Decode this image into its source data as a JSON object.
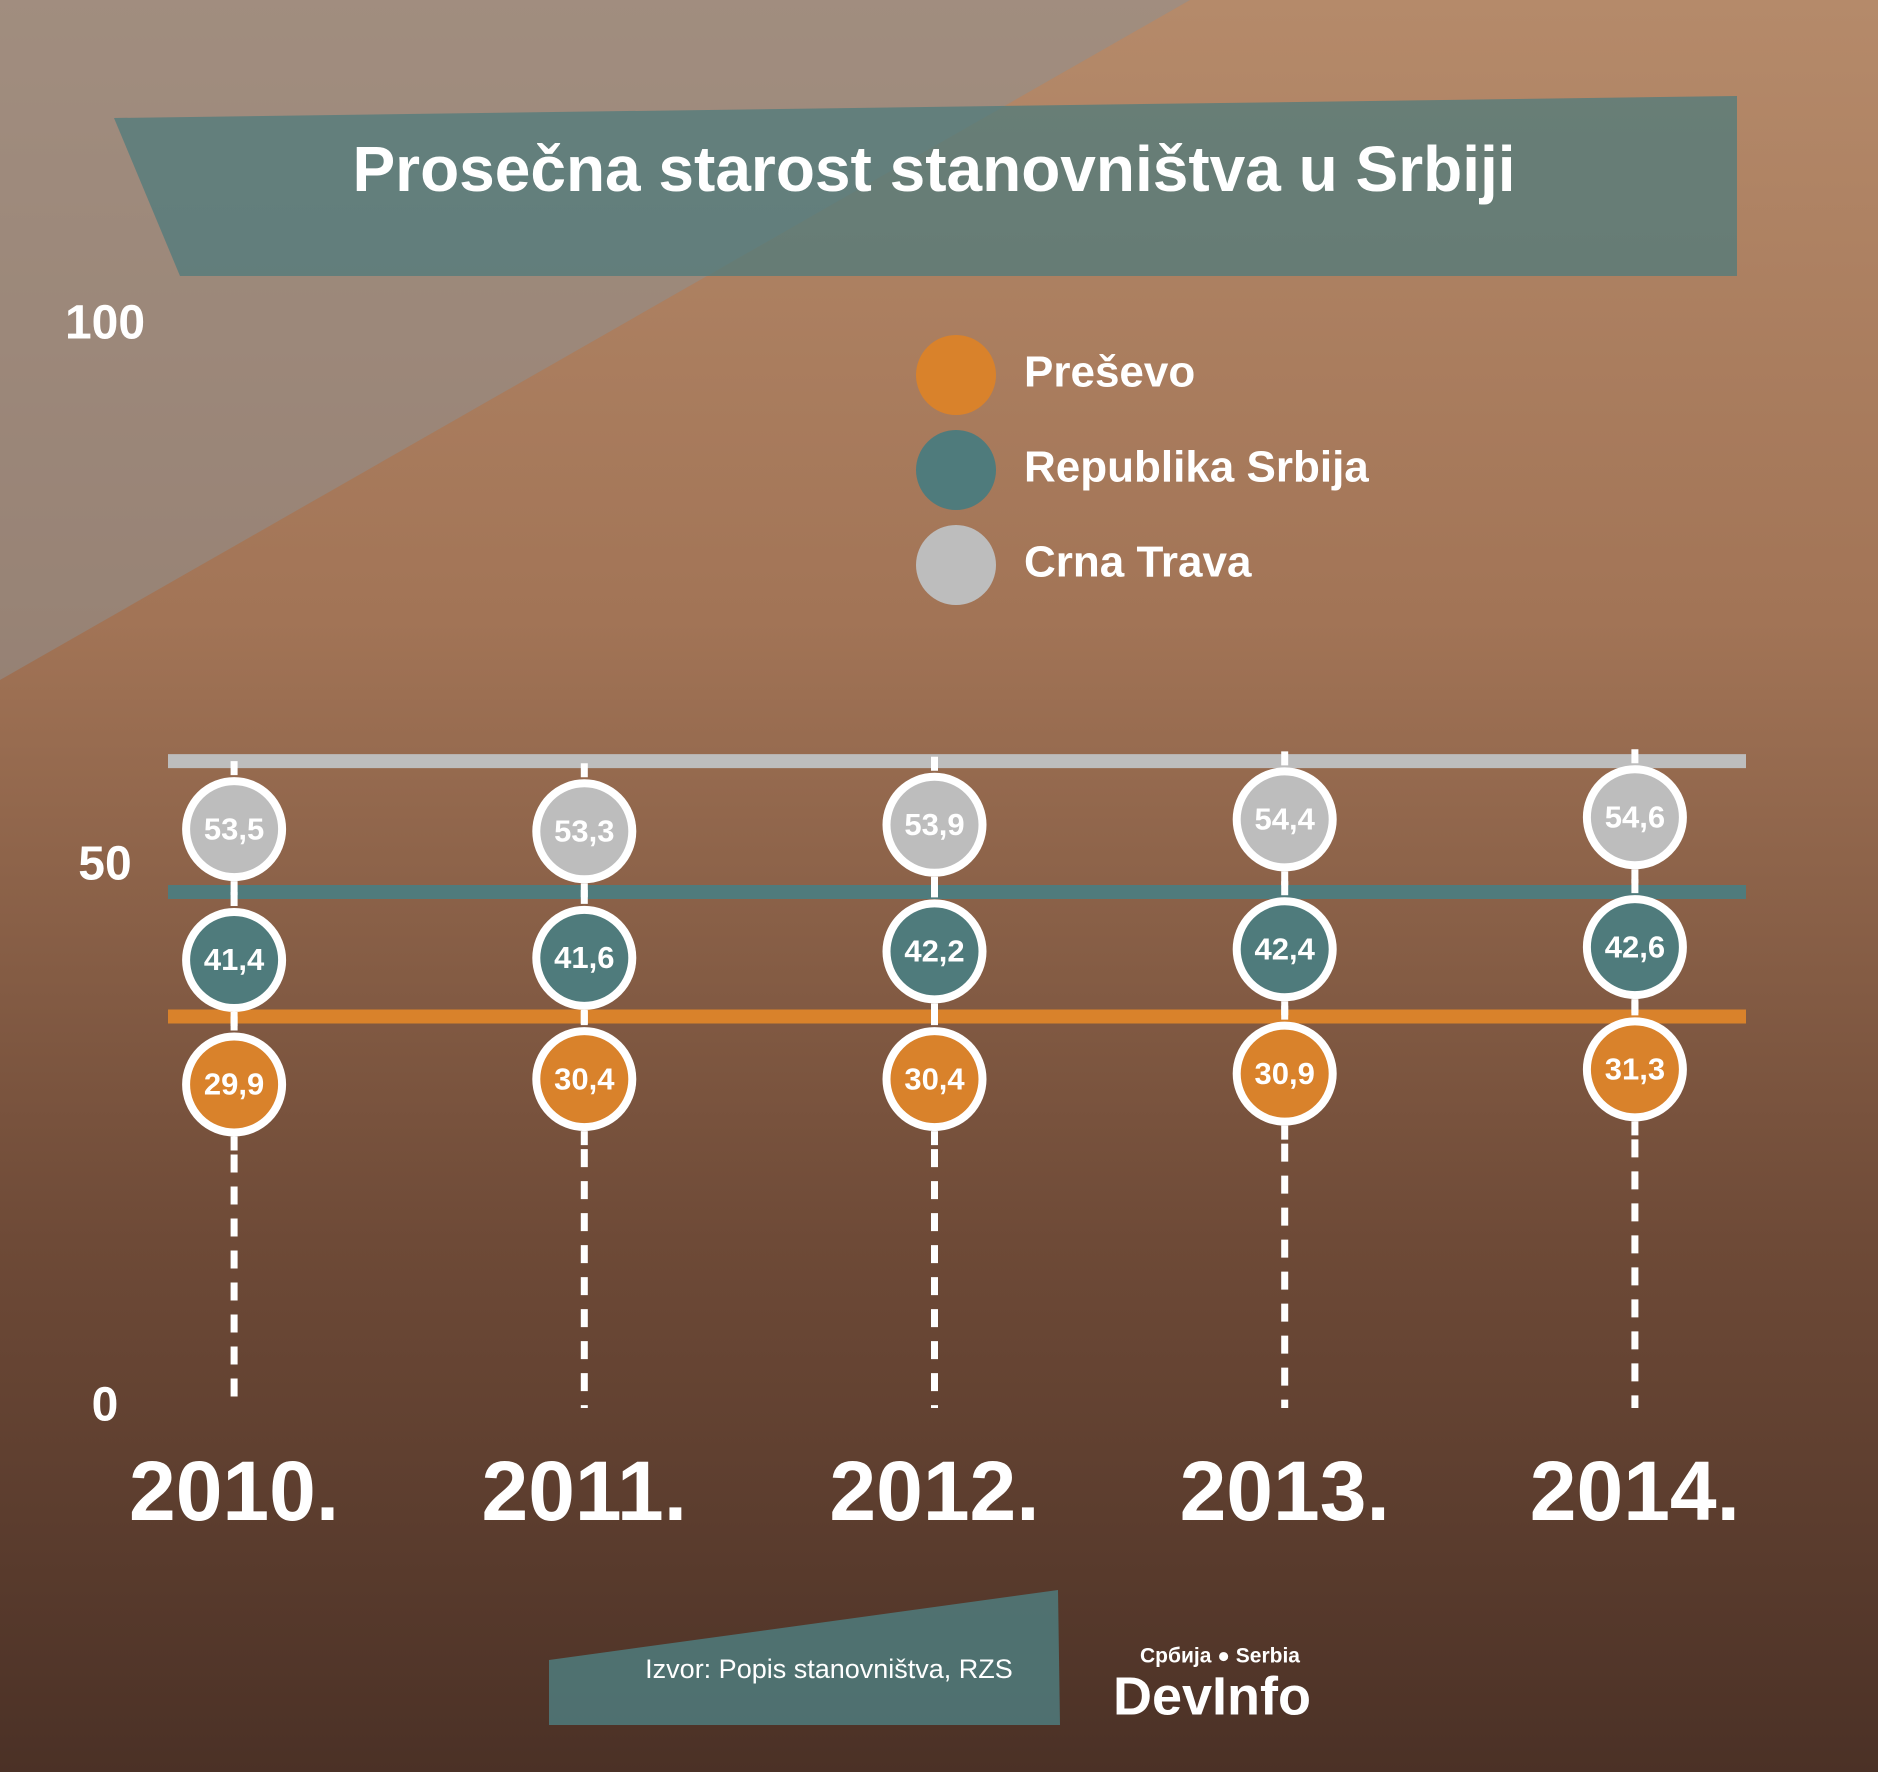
{
  "chart_data": {
    "type": "dot",
    "title": "Prosečna starost stanovništva u Srbiji",
    "categories": [
      "2010.",
      "2011.",
      "2012.",
      "2013.",
      "2014."
    ],
    "series": [
      {
        "name": "Preševo",
        "color": "#d9822b",
        "values": [
          29.9,
          30.4,
          30.4,
          30.9,
          31.3
        ],
        "value_labels": [
          "29,9",
          "30,4",
          "30,4",
          "30,9",
          "31,3"
        ]
      },
      {
        "name": "Republika Srbija",
        "color": "#4f7b7c",
        "values": [
          41.4,
          41.6,
          42.2,
          42.4,
          42.6
        ],
        "value_labels": [
          "41,4",
          "41,6",
          "42,2",
          "42,4",
          "42,6"
        ]
      },
      {
        "name": "Crna Trava",
        "color": "#bdbdbd",
        "values": [
          53.5,
          53.3,
          53.9,
          54.4,
          54.6
        ],
        "value_labels": [
          "53,5",
          "53,3",
          "53,9",
          "54,4",
          "54,6"
        ]
      }
    ],
    "ylim": [
      0,
      100
    ],
    "yticks": [
      0,
      50,
      100
    ],
    "source": "Izvor: Popis stanovništva, RZS",
    "logo": {
      "tagline": "Србија ● Serbia",
      "name": "DevInfo"
    }
  }
}
